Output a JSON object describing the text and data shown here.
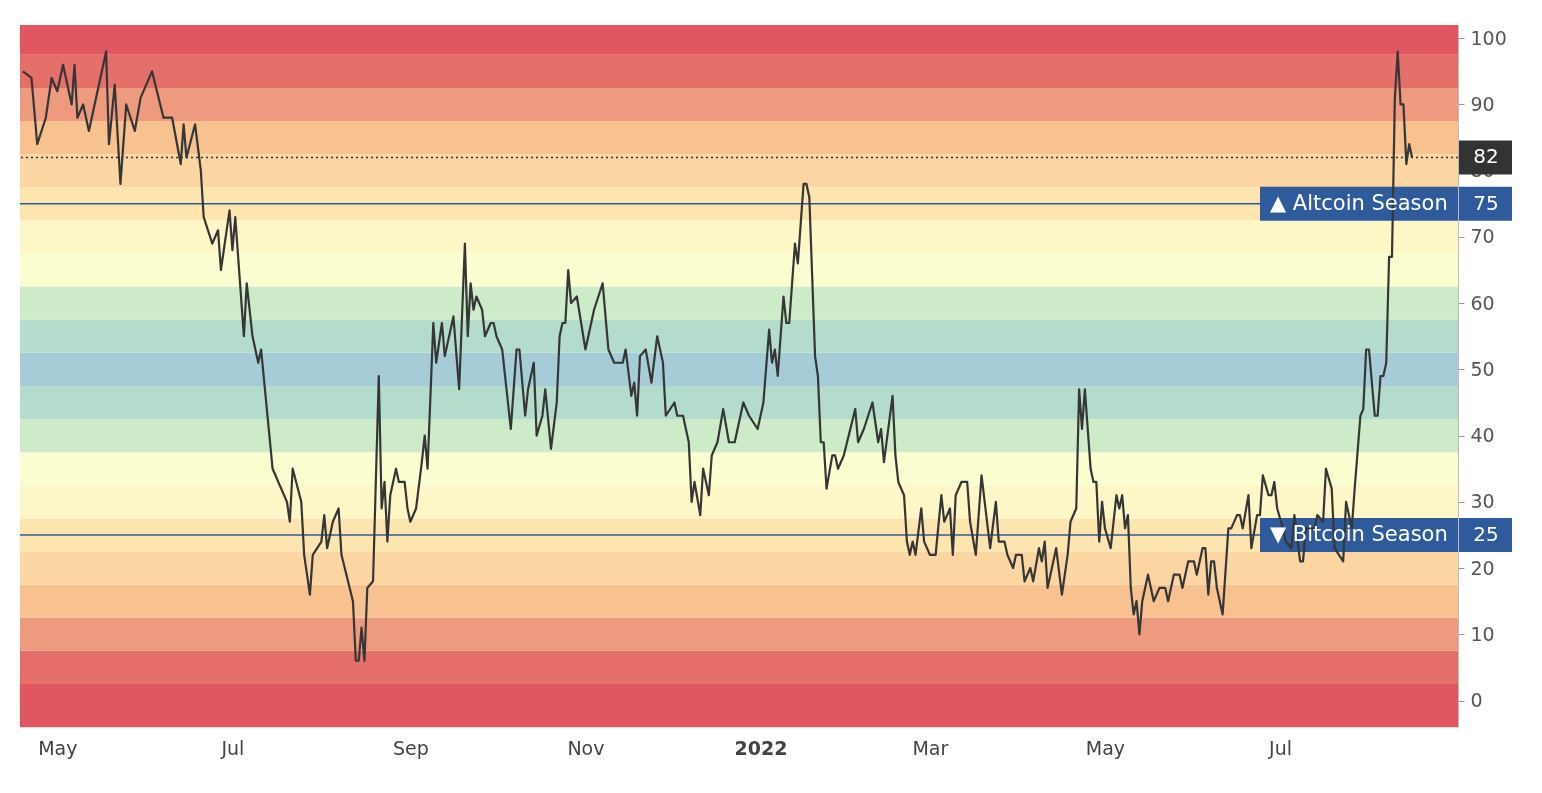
{
  "chart_data": {
    "type": "line",
    "x": [
      "2021-04-19",
      "2021-04-22",
      "2021-04-24",
      "2021-04-27",
      "2021-04-29",
      "2021-05-01",
      "2021-05-03",
      "2021-05-06",
      "2021-05-07",
      "2021-05-08",
      "2021-05-10",
      "2021-05-12",
      "2021-05-15",
      "2021-05-18",
      "2021-05-19",
      "2021-05-21",
      "2021-05-23",
      "2021-05-25",
      "2021-05-28",
      "2021-05-30",
      "2021-06-03",
      "2021-06-07",
      "2021-06-10",
      "2021-06-13",
      "2021-06-14",
      "2021-06-15",
      "2021-06-18",
      "2021-06-20",
      "2021-06-21",
      "2021-06-24",
      "2021-06-26",
      "2021-06-27",
      "2021-06-30",
      "2021-07-01",
      "2021-07-02",
      "2021-07-05",
      "2021-07-06",
      "2021-07-08",
      "2021-07-10",
      "2021-07-11",
      "2021-07-15",
      "2021-07-17",
      "2021-07-20",
      "2021-07-21",
      "2021-07-22",
      "2021-07-25",
      "2021-07-26",
      "2021-07-28",
      "2021-07-29",
      "2021-08-01",
      "2021-08-02",
      "2021-08-03",
      "2021-08-05",
      "2021-08-07",
      "2021-08-08",
      "2021-08-12",
      "2021-08-13",
      "2021-08-14",
      "2021-08-15",
      "2021-08-16",
      "2021-08-17",
      "2021-08-19",
      "2021-08-21",
      "2021-08-22",
      "2021-08-23",
      "2021-08-24",
      "2021-08-25",
      "2021-08-27",
      "2021-08-28",
      "2021-08-30",
      "2021-08-31",
      "2021-09-01",
      "2021-09-03",
      "2021-09-05",
      "2021-09-06",
      "2021-09-07",
      "2021-09-09",
      "2021-09-10",
      "2021-09-12",
      "2021-09-13",
      "2021-09-16",
      "2021-09-18",
      "2021-09-20",
      "2021-09-21",
      "2021-09-22",
      "2021-09-23",
      "2021-09-24",
      "2021-09-26",
      "2021-09-27",
      "2021-09-29",
      "2021-09-30",
      "2021-10-01",
      "2021-10-03",
      "2021-10-04",
      "2021-10-06",
      "2021-10-08",
      "2021-10-09",
      "2021-10-11",
      "2021-10-12",
      "2021-10-14",
      "2021-10-15",
      "2021-10-17",
      "2021-10-18",
      "2021-10-20",
      "2021-10-22",
      "2021-10-23",
      "2021-10-24",
      "2021-10-25",
      "2021-10-26",
      "2021-10-27",
      "2021-10-29",
      "2021-11-01",
      "2021-11-04",
      "2021-11-07",
      "2021-11-09",
      "2021-11-11",
      "2021-11-14",
      "2021-11-15",
      "2021-11-17",
      "2021-11-18",
      "2021-11-19",
      "2021-11-20",
      "2021-11-22",
      "2021-11-24",
      "2021-11-26",
      "2021-11-28",
      "2021-11-29",
      "2021-12-02",
      "2021-12-03",
      "2021-12-05",
      "2021-12-07",
      "2021-12-08",
      "2021-12-09",
      "2021-12-11",
      "2021-12-12",
      "2021-12-14",
      "2021-12-15",
      "2021-12-17",
      "2021-12-19",
      "2021-12-21",
      "2021-12-23",
      "2021-12-24",
      "2021-12-26",
      "2021-12-28",
      "2021-12-31",
      "2022-01-02",
      "2022-01-04",
      "2022-01-05",
      "2022-01-06",
      "2022-01-07",
      "2022-01-09",
      "2022-01-10",
      "2022-01-11",
      "2022-01-13",
      "2022-01-14",
      "2022-01-16",
      "2022-01-17",
      "2022-01-18",
      "2022-01-20",
      "2022-01-21",
      "2022-01-22",
      "2022-01-23",
      "2022-01-24",
      "2022-01-26",
      "2022-01-27",
      "2022-01-28",
      "2022-01-30",
      "2022-02-03",
      "2022-02-04",
      "2022-02-06",
      "2022-02-09",
      "2022-02-11",
      "2022-02-12",
      "2022-02-13",
      "2022-02-16",
      "2022-02-17",
      "2022-02-18",
      "2022-02-20",
      "2022-02-21",
      "2022-02-22",
      "2022-02-23",
      "2022-02-24",
      "2022-02-26",
      "2022-02-27",
      "2022-03-01",
      "2022-03-03",
      "2022-03-05",
      "2022-03-06",
      "2022-03-08",
      "2022-03-09",
      "2022-03-10",
      "2022-03-12",
      "2022-03-14",
      "2022-03-15",
      "2022-03-17",
      "2022-03-19",
      "2022-03-22",
      "2022-03-24",
      "2022-03-25",
      "2022-03-27",
      "2022-03-28",
      "2022-03-30",
      "2022-03-31",
      "2022-04-02",
      "2022-04-03",
      "2022-04-05",
      "2022-04-06",
      "2022-04-08",
      "2022-04-09",
      "2022-04-10",
      "2022-04-11",
      "2022-04-13",
      "2022-04-14",
      "2022-04-16",
      "2022-04-18",
      "2022-04-19",
      "2022-04-21",
      "2022-04-22",
      "2022-04-23",
      "2022-04-24",
      "2022-04-26",
      "2022-04-27",
      "2022-04-28",
      "2022-04-29",
      "2022-04-30",
      "2022-05-01",
      "2022-05-03",
      "2022-05-05",
      "2022-05-06",
      "2022-05-07",
      "2022-05-08",
      "2022-05-09",
      "2022-05-10",
      "2022-05-11",
      "2022-05-12",
      "2022-05-13",
      "2022-05-14",
      "2022-05-16",
      "2022-05-18",
      "2022-05-20",
      "2022-05-22",
      "2022-05-23",
      "2022-05-25",
      "2022-05-27",
      "2022-05-28",
      "2022-05-30",
      "2022-06-01",
      "2022-06-02",
      "2022-06-04",
      "2022-06-05",
      "2022-06-06",
      "2022-06-07",
      "2022-06-08",
      "2022-06-09",
      "2022-06-11",
      "2022-06-13",
      "2022-06-14",
      "2022-06-16",
      "2022-06-17",
      "2022-06-18",
      "2022-06-20",
      "2022-06-21",
      "2022-06-23",
      "2022-06-24",
      "2022-06-25",
      "2022-06-27",
      "2022-06-28",
      "2022-06-29",
      "2022-06-30",
      "2022-07-02",
      "2022-07-03",
      "2022-07-05",
      "2022-07-06",
      "2022-07-08",
      "2022-07-09",
      "2022-07-10",
      "2022-07-13",
      "2022-07-14",
      "2022-07-16",
      "2022-07-17",
      "2022-07-19",
      "2022-07-20",
      "2022-07-23",
      "2022-07-24",
      "2022-07-26",
      "2022-07-27",
      "2022-07-29",
      "2022-07-30",
      "2022-07-31",
      "2022-08-01",
      "2022-08-03",
      "2022-08-04",
      "2022-08-05",
      "2022-08-06",
      "2022-08-07",
      "2022-08-08",
      "2022-08-09",
      "2022-08-10",
      "2022-08-11",
      "2022-08-12",
      "2022-08-13",
      "2022-08-14",
      "2022-08-15",
      "2022-08-16"
    ],
    "series": [
      {
        "color": "#363636",
        "values": [
          95,
          94,
          84,
          88,
          94,
          92,
          96,
          90,
          96,
          88,
          90,
          86,
          92,
          98,
          84,
          93,
          78,
          90,
          86,
          91,
          95,
          88,
          88,
          81,
          87,
          82,
          87,
          80,
          73,
          69,
          71,
          65,
          74,
          68,
          73,
          55,
          63,
          55,
          51,
          53,
          35,
          33,
          30,
          27,
          35,
          30,
          22,
          16,
          22,
          24,
          28,
          23,
          27,
          29,
          22,
          15,
          6,
          6,
          11,
          6,
          17,
          18,
          49,
          29,
          33,
          24,
          31,
          35,
          33,
          33,
          29,
          27,
          29,
          36,
          40,
          35,
          57,
          51,
          57,
          52,
          58,
          47,
          69,
          55,
          63,
          59,
          61,
          59,
          55,
          57,
          57,
          55,
          53,
          49,
          41,
          53,
          53,
          43,
          47,
          51,
          40,
          43,
          47,
          38,
          45,
          55,
          57,
          57,
          65,
          60,
          61,
          53,
          59,
          63,
          53,
          51,
          51,
          53,
          46,
          48,
          43,
          52,
          53,
          48,
          55,
          51,
          43,
          45,
          43,
          43,
          39,
          30,
          33,
          28,
          35,
          31,
          37,
          39,
          44,
          39,
          39,
          41,
          45,
          43,
          41,
          45,
          56,
          51,
          53,
          49,
          61,
          57,
          57,
          69,
          66,
          78,
          78,
          76,
          52,
          49,
          39,
          39,
          32,
          37,
          37,
          35,
          37,
          44,
          39,
          41,
          45,
          39,
          41,
          36,
          46,
          37,
          33,
          31,
          24,
          22,
          24,
          22,
          29,
          24,
          22,
          22,
          31,
          27,
          29,
          22,
          31,
          33,
          33,
          27,
          22,
          34,
          23,
          30,
          24,
          24,
          22,
          20,
          22,
          22,
          18,
          20,
          18,
          23,
          21,
          24,
          17,
          21,
          23,
          16,
          22,
          27,
          29,
          47,
          41,
          47,
          35,
          33,
          33,
          24,
          30,
          26,
          23,
          31,
          29,
          31,
          26,
          28,
          17,
          13,
          15,
          10,
          15,
          19,
          15,
          17,
          17,
          15,
          19,
          19,
          17,
          21,
          21,
          19,
          23,
          23,
          16,
          21,
          21,
          17,
          13,
          26,
          26,
          28,
          28,
          26,
          31,
          23,
          28,
          28,
          34,
          31,
          31,
          33,
          29,
          26,
          24,
          23,
          28,
          21,
          21,
          26,
          26,
          28,
          27,
          35,
          32,
          23,
          21,
          30,
          26,
          32,
          43,
          44,
          53,
          53,
          43,
          43,
          49,
          49,
          51,
          67,
          67,
          91,
          98,
          90,
          90,
          81,
          84,
          82
        ]
      }
    ],
    "xlim": [
      "2021-04-18",
      "2022-09-01"
    ],
    "xticks": [
      {
        "value": "2021-05-01",
        "label": "May"
      },
      {
        "value": "2021-07-01",
        "label": "Jul"
      },
      {
        "value": "2021-09-01",
        "label": "Sep"
      },
      {
        "value": "2021-11-01",
        "label": "Nov"
      },
      {
        "value": "2022-01-01",
        "label": "2022"
      },
      {
        "value": "2022-03-01",
        "label": "Mar"
      },
      {
        "value": "2022-05-01",
        "label": "May"
      },
      {
        "value": "2022-07-01",
        "label": "Jul"
      }
    ],
    "ylim": [
      -4,
      102
    ],
    "yticks": [
      0,
      10,
      20,
      25,
      30,
      40,
      50,
      60,
      70,
      75,
      80,
      82,
      90,
      100
    ],
    "ref_lines": [
      {
        "axis": "y",
        "value": 75,
        "label": "▲ Altcoin Season",
        "color": "#2f5b9c"
      },
      {
        "axis": "y",
        "value": 25,
        "label": "▼ Bitcoin Season",
        "color": "#2f5b9c"
      },
      {
        "axis": "y",
        "value": 82,
        "color": "#333333",
        "line_style": "dotted"
      }
    ],
    "bands": [
      {
        "axis": "y",
        "from": -4,
        "to": 2.5,
        "color": "#e05762"
      },
      {
        "axis": "y",
        "from": 2.5,
        "to": 7.5,
        "color": "#e5706a"
      },
      {
        "axis": "y",
        "from": 7.5,
        "to": 12.5,
        "color": "#ee9a7f"
      },
      {
        "axis": "y",
        "from": 12.5,
        "to": 17.5,
        "color": "#f7c190"
      },
      {
        "axis": "y",
        "from": 17.5,
        "to": 22.5,
        "color": "#fcd6a2"
      },
      {
        "axis": "y",
        "from": 22.5,
        "to": 27.5,
        "color": "#fde5b0"
      },
      {
        "axis": "y",
        "from": 27.5,
        "to": 32.5,
        "color": "#fdf6c6"
      },
      {
        "axis": "y",
        "from": 32.5,
        "to": 37.5,
        "color": "#fafdd0"
      },
      {
        "axis": "y",
        "from": 37.5,
        "to": 42.5,
        "color": "#cdebc9"
      },
      {
        "axis": "y",
        "from": 42.5,
        "to": 47.5,
        "color": "#b4dccd"
      },
      {
        "axis": "y",
        "from": 47.5,
        "to": 52.5,
        "color": "#a6ccd8"
      },
      {
        "axis": "y",
        "from": 52.5,
        "to": 57.5,
        "color": "#b4dccd"
      },
      {
        "axis": "y",
        "from": 57.5,
        "to": 62.5,
        "color": "#cdebc9"
      },
      {
        "axis": "y",
        "from": 62.5,
        "to": 67.5,
        "color": "#fafdd0"
      },
      {
        "axis": "y",
        "from": 67.5,
        "to": 72.5,
        "color": "#fdf6c6"
      },
      {
        "axis": "y",
        "from": 72.5,
        "to": 77.5,
        "color": "#fde5b0"
      },
      {
        "axis": "y",
        "from": 77.5,
        "to": 82.5,
        "color": "#fcd6a2"
      },
      {
        "axis": "y",
        "from": 82.5,
        "to": 87.5,
        "color": "#f7c190"
      },
      {
        "axis": "y",
        "from": 87.5,
        "to": 92.5,
        "color": "#ee9a7f"
      },
      {
        "axis": "y",
        "from": 92.5,
        "to": 97.5,
        "color": "#e5706a"
      },
      {
        "axis": "y",
        "from": 97.5,
        "to": 102,
        "color": "#e05762"
      }
    ]
  }
}
